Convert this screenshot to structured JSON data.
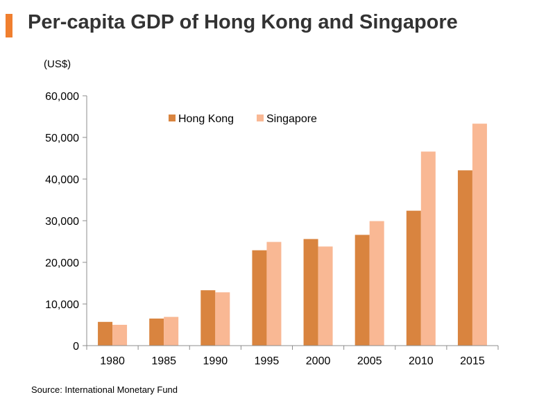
{
  "header": {
    "title": "Per-capita GDP of Hong Kong and Singapore",
    "unit_label": "(US$)"
  },
  "footer": {
    "source": "Source: International Monetary Fund"
  },
  "colors": {
    "accent": "#f07f2f",
    "hong_kong": "#d9843f",
    "singapore": "#f9b894",
    "axis": "#8c8c8c",
    "text": "#000000"
  },
  "chart_data": {
    "type": "bar",
    "title": "Per-capita GDP of Hong Kong and Singapore",
    "xlabel": "",
    "ylabel": "(US$)",
    "categories": [
      "1980",
      "1985",
      "1990",
      "1995",
      "2000",
      "2005",
      "2010",
      "2015"
    ],
    "series": [
      {
        "name": "Hong Kong",
        "values": [
          5700,
          6500,
          13300,
          22900,
          25600,
          26600,
          32400,
          42100
        ]
      },
      {
        "name": "Singapore",
        "values": [
          5000,
          6900,
          12800,
          24900,
          23800,
          29900,
          46600,
          53300
        ]
      }
    ],
    "ylim": [
      0,
      60000
    ],
    "yticks": [
      "0",
      "10,000",
      "20,000",
      "30,000",
      "40,000",
      "50,000",
      "60,000"
    ],
    "ytick_values": [
      0,
      10000,
      20000,
      30000,
      40000,
      50000,
      60000
    ],
    "grid": false,
    "legend": "top-center"
  }
}
